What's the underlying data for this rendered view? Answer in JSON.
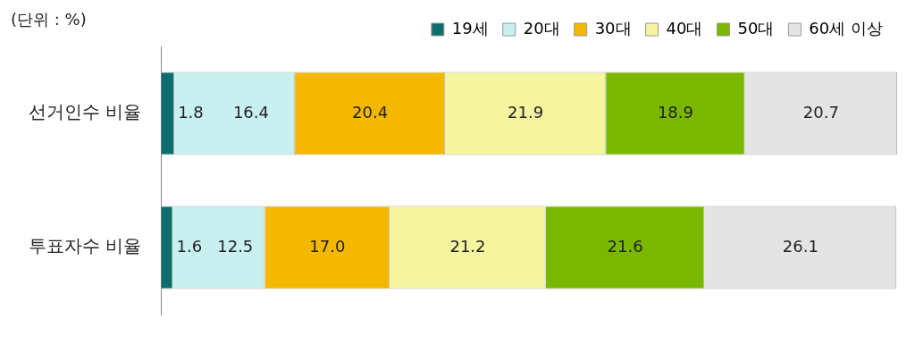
{
  "chart_data": {
    "type": "bar",
    "orientation": "horizontal",
    "stacked": true,
    "legend": "top right",
    "tick_labels": "y",
    "annotations": [
      "(단위 : %)"
    ],
    "categories": [
      "선거인수 비율",
      "투표자수 비율"
    ],
    "series": [
      {
        "name": "19세",
        "color": "#0e6e6e",
        "values": [
          1.8,
          1.6
        ],
        "value_labels": [
          "1.8",
          "1.6"
        ]
      },
      {
        "name": "20대",
        "color": "#c8f0f0",
        "values": [
          16.4,
          12.5
        ],
        "value_labels": [
          "16.4",
          "12.5"
        ]
      },
      {
        "name": "30대",
        "color": "#f5b800",
        "values": [
          20.4,
          17.0
        ],
        "value_labels": [
          "20.4",
          "17.0"
        ]
      },
      {
        "name": "40대",
        "color": "#f5f5a0",
        "values": [
          21.9,
          21.2
        ],
        "value_labels": [
          "21.9",
          "21.2"
        ]
      },
      {
        "name": "50대",
        "color": "#7ab800",
        "values": [
          18.9,
          21.6
        ],
        "value_labels": [
          "18.9",
          "21.6"
        ]
      },
      {
        "name": "60세 이상",
        "color": "#e4e4e4",
        "values": [
          20.7,
          26.1
        ],
        "value_labels": [
          "20.7",
          "26.1"
        ]
      }
    ]
  }
}
